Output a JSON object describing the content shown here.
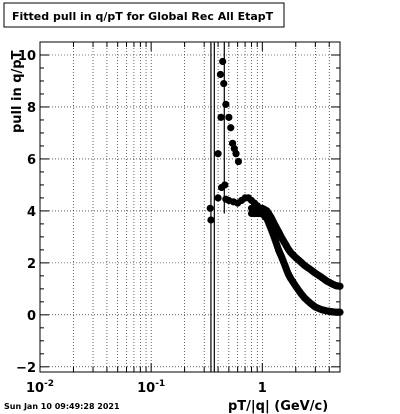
{
  "title": "Fitted pull in q/pT for Global Rec All EtapT",
  "footer": {
    "timestamp": "Sun Jan 10 09:49:28 2021"
  },
  "chart_data": {
    "type": "scatter",
    "title": "Fitted pull in q/pT for Global Rec All EtapT",
    "xlabel": "pT/|q| (GeV/c)",
    "ylabel": "pull in q/pT",
    "x_scale": "log",
    "xlim": [
      0.01,
      5.0
    ],
    "ylim": [
      -2.2,
      10.5
    ],
    "grid": true,
    "x_major_ticks": [
      {
        "value": 0.01,
        "base": "10",
        "exp": "-2"
      },
      {
        "value": 0.1,
        "base": "10",
        "exp": "-1"
      },
      {
        "value": 1,
        "base": "1",
        "exp": ""
      }
    ],
    "y_ticks": [
      -2,
      0,
      2,
      4,
      6,
      8,
      10
    ],
    "markers": [
      {
        "x": 0.34,
        "y": 4.1
      },
      {
        "x": 0.345,
        "y": 3.65
      },
      {
        "x": 0.4,
        "y": 6.2
      },
      {
        "x": 0.4,
        "y": 4.5
      },
      {
        "x": 0.42,
        "y": 9.25
      },
      {
        "x": 0.425,
        "y": 7.6
      },
      {
        "x": 0.43,
        "y": 4.9
      },
      {
        "x": 0.44,
        "y": 9.75
      },
      {
        "x": 0.45,
        "y": 8.9
      },
      {
        "x": 0.47,
        "y": 8.1
      },
      {
        "x": 0.46,
        "y": 5.0
      },
      {
        "x": 0.47,
        "y": 4.45
      },
      {
        "x": 0.5,
        "y": 7.6
      },
      {
        "x": 0.52,
        "y": 7.2
      },
      {
        "x": 0.54,
        "y": 6.6
      },
      {
        "x": 0.56,
        "y": 6.4
      },
      {
        "x": 0.58,
        "y": 6.2
      },
      {
        "x": 0.61,
        "y": 5.9
      },
      {
        "x": 0.5,
        "y": 4.4
      },
      {
        "x": 0.55,
        "y": 4.35
      },
      {
        "x": 0.6,
        "y": 4.3
      },
      {
        "x": 0.65,
        "y": 4.4
      },
      {
        "x": 0.7,
        "y": 4.5
      },
      {
        "x": 0.75,
        "y": 4.5
      },
      {
        "x": 0.8,
        "y": 4.4
      },
      {
        "x": 0.85,
        "y": 4.3
      },
      {
        "x": 0.9,
        "y": 4.2
      },
      {
        "x": 0.95,
        "y": 4.1
      },
      {
        "x": 1.0,
        "y": 4.05
      }
    ],
    "series": [
      {
        "x": [
          0.8,
          0.9,
          1.0,
          1.1,
          1.2,
          1.3,
          1.4,
          1.5,
          1.6,
          1.7,
          1.8,
          2.0,
          2.2,
          2.4,
          2.7,
          3.0,
          3.4,
          3.8,
          4.2,
          4.6,
          5.0
        ],
        "values": [
          4.1,
          4.1,
          4.1,
          4.0,
          3.75,
          3.45,
          3.2,
          2.95,
          2.75,
          2.55,
          2.4,
          2.2,
          2.05,
          1.9,
          1.75,
          1.6,
          1.45,
          1.3,
          1.2,
          1.12,
          1.1
        ]
      },
      {
        "x": [
          0.8,
          0.9,
          1.0,
          1.1,
          1.2,
          1.3,
          1.4,
          1.5,
          1.6,
          1.7,
          1.8,
          2.0,
          2.2,
          2.4,
          2.7,
          3.0,
          3.4,
          3.8,
          4.2,
          4.6,
          5.0
        ],
        "values": [
          3.9,
          3.9,
          3.9,
          3.7,
          3.3,
          2.9,
          2.5,
          2.2,
          1.9,
          1.6,
          1.4,
          1.1,
          0.85,
          0.65,
          0.45,
          0.3,
          0.2,
          0.15,
          0.12,
          0.1,
          0.1
        ]
      }
    ],
    "vertical_lines": [
      {
        "x": 0.345,
        "y0": -2.2,
        "y1": 10.5
      },
      {
        "x": 0.37,
        "y0": -2.2,
        "y1": 10.5
      },
      {
        "x": 0.455,
        "y0": 3.9,
        "y1": 10.5
      }
    ]
  }
}
